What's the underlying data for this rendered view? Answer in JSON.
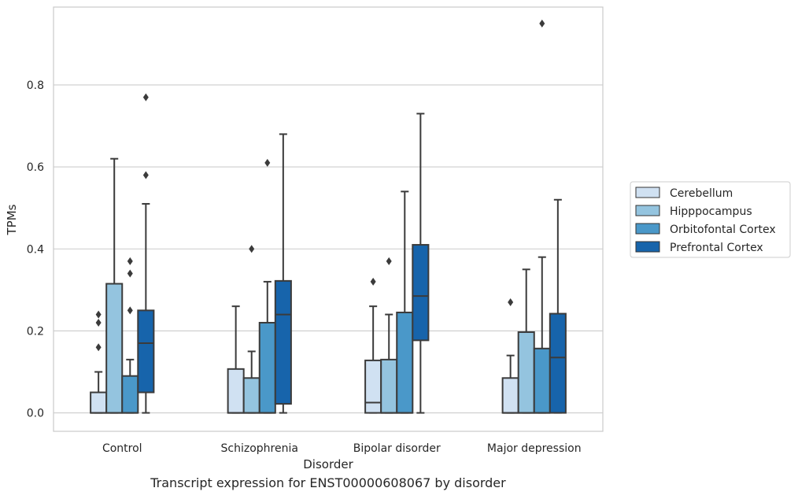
{
  "caption": "Transcript expression for ENST00000608067 by disorder",
  "chart_data": {
    "type": "box",
    "xlabel": "Disorder",
    "ylabel": "TPMs",
    "ylim": [
      -0.045,
      0.99
    ],
    "yticks": [
      "0.0",
      "0.2",
      "0.4",
      "0.6",
      "0.8"
    ],
    "ytick_values": [
      0,
      0.2,
      0.4,
      0.6,
      0.8
    ],
    "grid": "horizontal",
    "legend_position": "right",
    "categories": [
      "Control",
      "Schizophrenia",
      "Bipolar disorder",
      "Major depression"
    ],
    "series": [
      {
        "name": "Cerebellum",
        "color": "#d0e1f2",
        "boxes": [
          {
            "whisker_low": 0,
            "q1": 0,
            "median": 0,
            "q3": 0.05,
            "whisker_high": 0.1,
            "outliers": [
              0.16,
              0.22,
              0.24
            ]
          },
          {
            "whisker_low": 0,
            "q1": 0,
            "median": 0,
            "q3": 0.107,
            "whisker_high": 0.26,
            "outliers": []
          },
          {
            "whisker_low": 0,
            "q1": 0,
            "median": 0.025,
            "q3": 0.128,
            "whisker_high": 0.26,
            "outliers": [
              0.32
            ]
          },
          {
            "whisker_low": 0,
            "q1": 0,
            "median": 0,
            "q3": 0.085,
            "whisker_high": 0.14,
            "outliers": [
              0.27
            ]
          }
        ]
      },
      {
        "name": "Hipppocampus",
        "color": "#94c4df",
        "boxes": [
          {
            "whisker_low": 0,
            "q1": 0,
            "median": 0,
            "q3": 0.315,
            "whisker_high": 0.62,
            "outliers": []
          },
          {
            "whisker_low": 0,
            "q1": 0,
            "median": 0,
            "q3": 0.085,
            "whisker_high": 0.15,
            "outliers": [
              0.4
            ]
          },
          {
            "whisker_low": 0,
            "q1": 0,
            "median": 0,
            "q3": 0.13,
            "whisker_high": 0.24,
            "outliers": [
              0.37
            ]
          },
          {
            "whisker_low": 0,
            "q1": 0,
            "median": 0,
            "q3": 0.197,
            "whisker_high": 0.35,
            "outliers": []
          }
        ]
      },
      {
        "name": "Orbitofontal Cortex",
        "color": "#4a98c9",
        "boxes": [
          {
            "whisker_low": 0,
            "q1": 0,
            "median": 0,
            "q3": 0.09,
            "whisker_high": 0.13,
            "outliers": [
              0.25,
              0.34,
              0.37
            ]
          },
          {
            "whisker_low": 0,
            "q1": 0,
            "median": 0,
            "q3": 0.22,
            "whisker_high": 0.32,
            "outliers": [
              0.61
            ]
          },
          {
            "whisker_low": 0,
            "q1": 0,
            "median": 0,
            "q3": 0.245,
            "whisker_high": 0.54,
            "outliers": []
          },
          {
            "whisker_low": 0,
            "q1": 0,
            "median": 0,
            "q3": 0.157,
            "whisker_high": 0.38,
            "outliers": [
              0.95
            ]
          }
        ]
      },
      {
        "name": "Prefrontal Cortex",
        "color": "#1764ab",
        "boxes": [
          {
            "whisker_low": 0,
            "q1": 0.05,
            "median": 0.17,
            "q3": 0.25,
            "whisker_high": 0.51,
            "outliers": [
              0.58,
              0.77
            ]
          },
          {
            "whisker_low": 0,
            "q1": 0.022,
            "median": 0.24,
            "q3": 0.322,
            "whisker_high": 0.68,
            "outliers": []
          },
          {
            "whisker_low": 0,
            "q1": 0.177,
            "median": 0.285,
            "q3": 0.41,
            "whisker_high": 0.73,
            "outliers": []
          },
          {
            "whisker_low": 0,
            "q1": 0,
            "median": 0.135,
            "q3": 0.242,
            "whisker_high": 0.52,
            "outliers": []
          }
        ]
      }
    ]
  }
}
